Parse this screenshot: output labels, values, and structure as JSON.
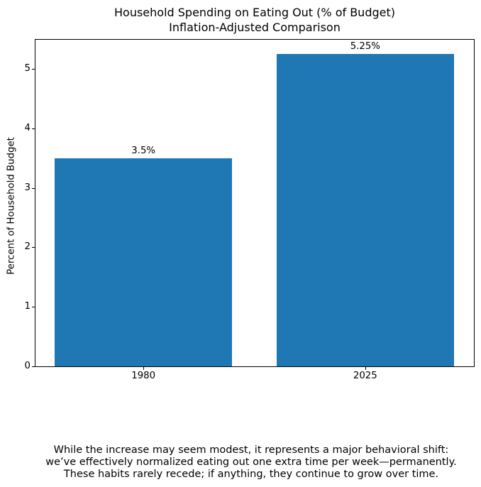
{
  "chart_data": {
    "type": "bar",
    "title": "Household Spending on Eating Out (% of Budget)",
    "subtitle": "Inflation-Adjusted Comparison",
    "categories": [
      "1980",
      "2025"
    ],
    "values": [
      3.5,
      5.25
    ],
    "bar_labels": [
      "3.5%",
      "5.25%"
    ],
    "ylabel": "Percent of Household Budget",
    "xlabel": "",
    "yticks": [
      "0",
      "1",
      "2",
      "3",
      "4",
      "5"
    ],
    "ytick_values": [
      0,
      1,
      2,
      3,
      4,
      5
    ],
    "ylim": [
      0,
      5.5
    ],
    "bar_color": "#1f77b4",
    "grid": false,
    "legend_position": "none"
  },
  "caption": {
    "lines": [
      "While the increase may seem modest, it represents a major behavioral shift:",
      "we’ve effectively normalized eating out one extra time per week—permanently.",
      "These habits rarely recede; if anything, they continue to grow over time."
    ]
  }
}
